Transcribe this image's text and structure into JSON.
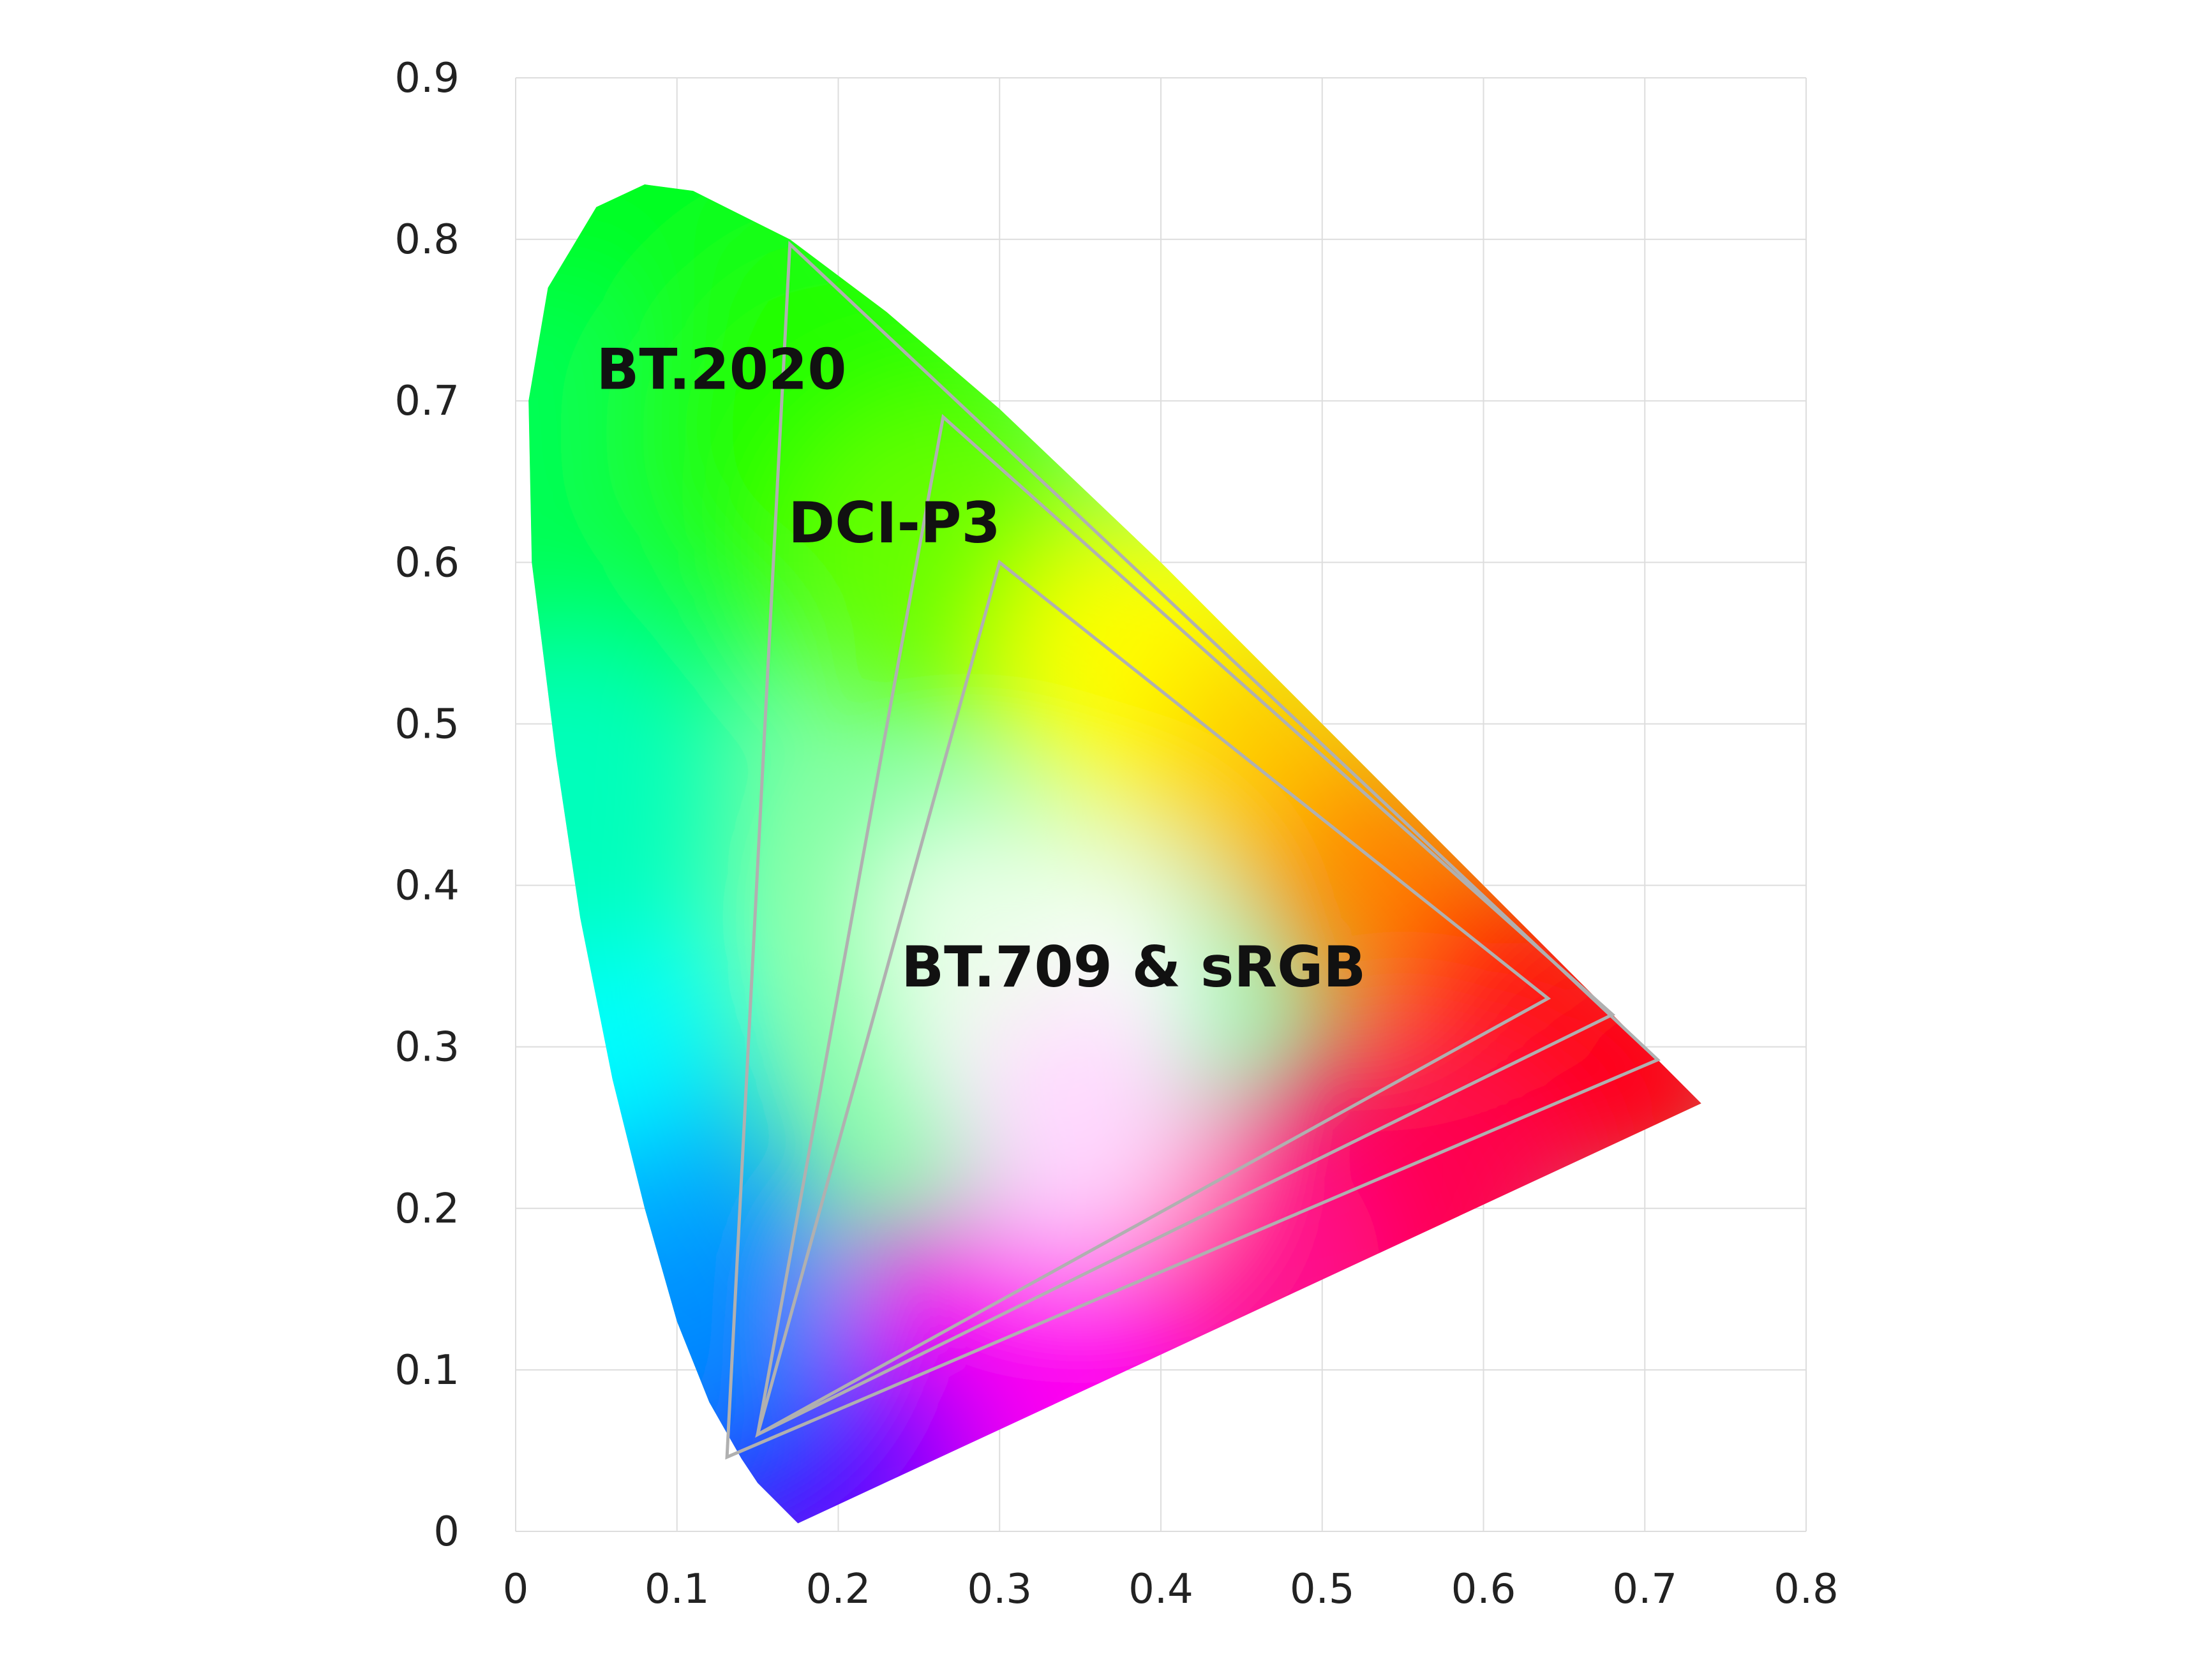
{
  "chart_data": {
    "type": "scatter",
    "title": "",
    "xlabel": "",
    "ylabel": "",
    "xlim": [
      0,
      0.8
    ],
    "ylim": [
      0,
      0.9
    ],
    "grid": true,
    "x_ticks": [
      "0",
      "0.1",
      "0.2",
      "0.3",
      "0.4",
      "0.5",
      "0.6",
      "0.7",
      "0.8"
    ],
    "y_ticks": [
      "0",
      "0.1",
      "0.2",
      "0.3",
      "0.4",
      "0.5",
      "0.6",
      "0.7",
      "0.8",
      "0.9"
    ],
    "spectral_locus": [
      [
        0.175,
        0.005
      ],
      [
        0.17,
        0.01
      ],
      [
        0.16,
        0.02
      ],
      [
        0.15,
        0.03
      ],
      [
        0.14,
        0.045
      ],
      [
        0.12,
        0.08
      ],
      [
        0.1,
        0.13
      ],
      [
        0.08,
        0.2
      ],
      [
        0.06,
        0.28
      ],
      [
        0.04,
        0.38
      ],
      [
        0.025,
        0.48
      ],
      [
        0.01,
        0.6
      ],
      [
        0.008,
        0.7
      ],
      [
        0.02,
        0.77
      ],
      [
        0.05,
        0.82
      ],
      [
        0.08,
        0.834
      ],
      [
        0.11,
        0.83
      ],
      [
        0.17,
        0.8
      ],
      [
        0.23,
        0.755
      ],
      [
        0.3,
        0.695
      ],
      [
        0.4,
        0.6
      ],
      [
        0.5,
        0.5
      ],
      [
        0.6,
        0.4
      ],
      [
        0.68,
        0.32
      ],
      [
        0.735,
        0.265
      ],
      [
        0.175,
        0.005
      ]
    ],
    "series": [
      {
        "name": "BT.2020",
        "points": [
          [
            0.17,
            0.797
          ],
          [
            0.708,
            0.292
          ],
          [
            0.131,
            0.046
          ]
        ]
      },
      {
        "name": "DCI-P3",
        "points": [
          [
            0.265,
            0.69
          ],
          [
            0.68,
            0.32
          ],
          [
            0.15,
            0.06
          ]
        ]
      },
      {
        "name": "BT.709 & sRGB",
        "points": [
          [
            0.3,
            0.6
          ],
          [
            0.64,
            0.33
          ],
          [
            0.15,
            0.06
          ]
        ]
      }
    ],
    "annotations": [
      {
        "text": "BT.2020",
        "x": 0.05,
        "y": 0.72
      },
      {
        "text": "DCI-P3",
        "x": 0.169,
        "y": 0.625
      },
      {
        "text": "BT.709 & sRGB",
        "x": 0.239,
        "y": 0.35
      }
    ],
    "colors": {
      "triangle_stroke": "#b0b0b0",
      "gridline": "#dddddd",
      "label_text": "#111111",
      "tick_text": "#222222"
    }
  }
}
